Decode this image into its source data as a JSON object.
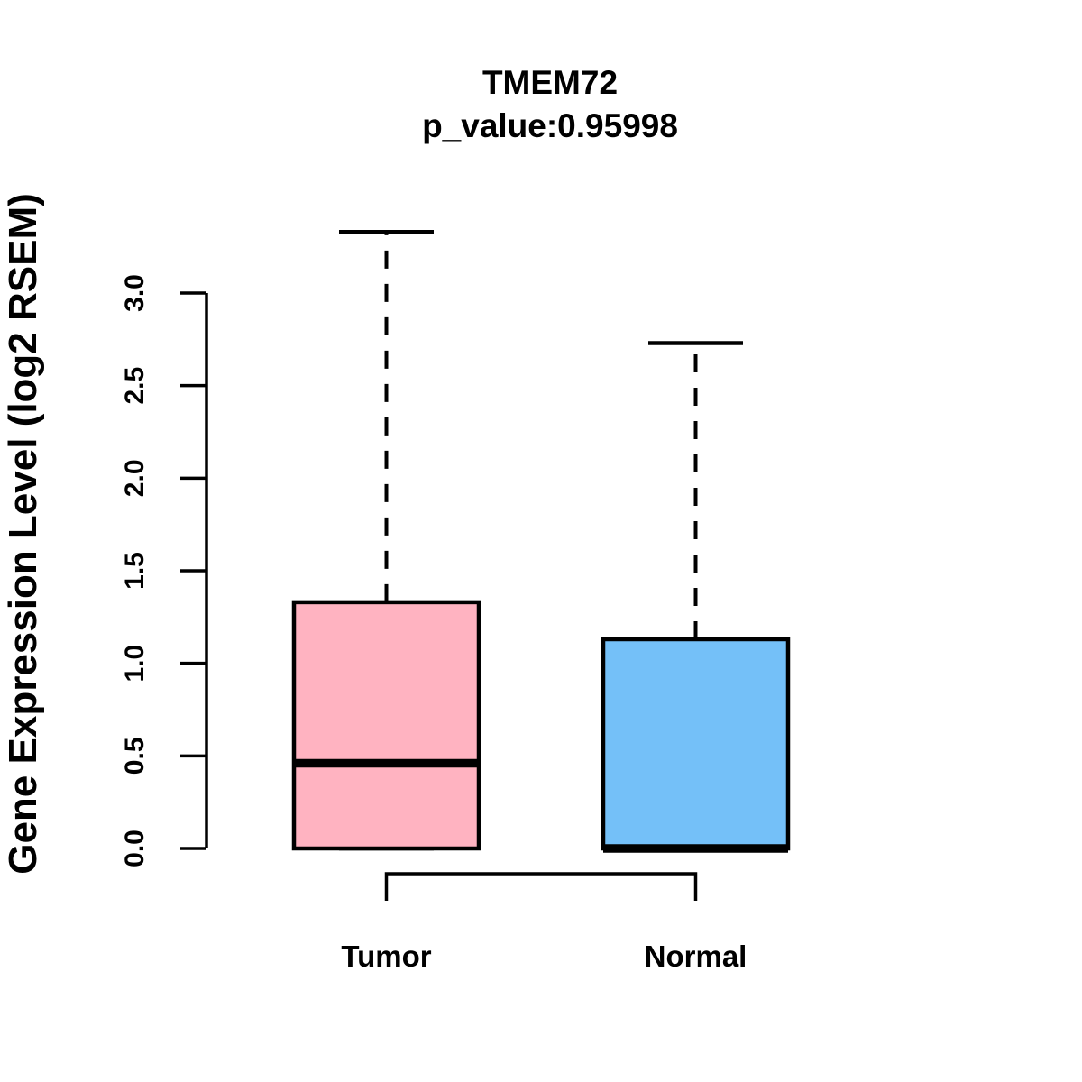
{
  "title": {
    "gene": "TMEM72",
    "p_value_line": "p_value:0.95998"
  },
  "y_axis": {
    "label": "Gene Expression Level (log2 RSEM)",
    "tick_labels": [
      "0.0",
      "0.5",
      "1.0",
      "1.5",
      "2.0",
      "2.5",
      "3.0"
    ]
  },
  "x_axis": {
    "labels": [
      "Tumor",
      "Normal"
    ]
  },
  "colors": {
    "tumor_fill": "#FFB3C1",
    "normal_fill": "#74C0F8",
    "line": "#000000",
    "background": "#FFFFFF"
  },
  "chart_data": {
    "type": "boxplot",
    "title": "TMEM72",
    "subtitle": "p_value:0.95998",
    "ylabel": "Gene Expression Level (log2 RSEM)",
    "xlabel": "",
    "categories": [
      "Tumor",
      "Normal"
    ],
    "ylim": [
      0.0,
      3.4
    ],
    "yticks": [
      0.0,
      0.5,
      1.0,
      1.5,
      2.0,
      2.5,
      3.0
    ],
    "grid": false,
    "legend": "none",
    "comparison_bracket": true,
    "series": [
      {
        "name": "Tumor",
        "color": "#FFB3C1",
        "whisker_low": 0.0,
        "q1": 0.0,
        "median": 0.46,
        "q3": 1.33,
        "whisker_high": 3.33
      },
      {
        "name": "Normal",
        "color": "#74C0F8",
        "whisker_low": 0.0,
        "q1": 0.0,
        "median": 0.0,
        "q3": 1.13,
        "whisker_high": 2.73
      }
    ]
  }
}
